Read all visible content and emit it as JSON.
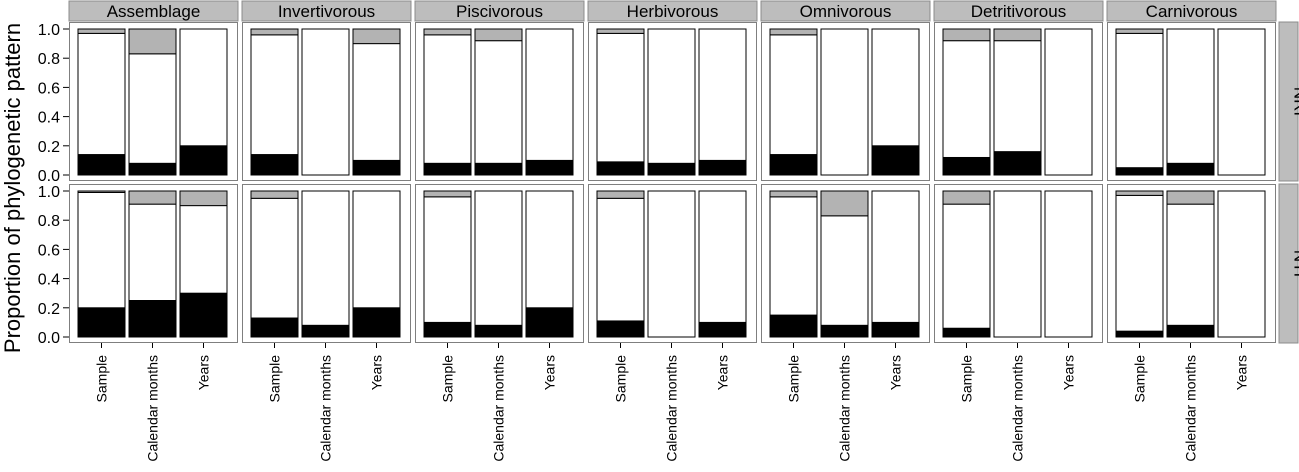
{
  "chart_data": {
    "type": "bar",
    "stacked": true,
    "ylabel": "Proportion of phylogenetic pattern",
    "xlabel": "",
    "ylim": [
      0,
      1
    ],
    "yticks": [
      "0.0",
      "0.2",
      "0.4",
      "0.6",
      "0.8",
      "1.0"
    ],
    "categories": [
      "Sample",
      "Calendar months",
      "Years"
    ],
    "columns": [
      "Assemblage",
      "Invertivorous",
      "Piscivorous",
      "Herbivorous",
      "Omnivorous",
      "Detritivorous",
      "Carnivorous"
    ],
    "rows": [
      "NRI",
      "NTI"
    ],
    "colors": {
      "black_segment": "#000000",
      "white_segment": "#ffffff",
      "gray_segment": "#b3b3b3",
      "strip_fill": "#bdbdbd",
      "panel_border": "#7f7f7f"
    },
    "panels": {
      "NRI": [
        {
          "black": [
            0.14,
            0.08,
            0.2
          ],
          "white": [
            0.83,
            0.75,
            0.8
          ],
          "gray": [
            0.03,
            0.17,
            0.0
          ]
        },
        {
          "black": [
            0.14,
            0.0,
            0.1
          ],
          "white": [
            0.82,
            1.0,
            0.8
          ],
          "gray": [
            0.04,
            0.0,
            0.1
          ]
        },
        {
          "black": [
            0.08,
            0.08,
            0.1
          ],
          "white": [
            0.88,
            0.84,
            0.9
          ],
          "gray": [
            0.04,
            0.08,
            0.0
          ]
        },
        {
          "black": [
            0.09,
            0.08,
            0.1
          ],
          "white": [
            0.88,
            0.92,
            0.9
          ],
          "gray": [
            0.03,
            0.0,
            0.0
          ]
        },
        {
          "black": [
            0.14,
            0.0,
            0.2
          ],
          "white": [
            0.82,
            1.0,
            0.8
          ],
          "gray": [
            0.04,
            0.0,
            0.0
          ]
        },
        {
          "black": [
            0.12,
            0.16,
            0.0
          ],
          "white": [
            0.8,
            0.76,
            1.0
          ],
          "gray": [
            0.08,
            0.08,
            0.0
          ]
        },
        {
          "black": [
            0.05,
            0.08,
            0.0
          ],
          "white": [
            0.92,
            0.92,
            1.0
          ],
          "gray": [
            0.03,
            0.0,
            0.0
          ]
        }
      ],
      "NTI": [
        {
          "black": [
            0.2,
            0.25,
            0.3
          ],
          "white": [
            0.79,
            0.66,
            0.6
          ],
          "gray": [
            0.01,
            0.09,
            0.1
          ]
        },
        {
          "black": [
            0.13,
            0.08,
            0.2
          ],
          "white": [
            0.82,
            0.92,
            0.8
          ],
          "gray": [
            0.05,
            0.0,
            0.0
          ]
        },
        {
          "black": [
            0.1,
            0.08,
            0.2
          ],
          "white": [
            0.86,
            0.92,
            0.8
          ],
          "gray": [
            0.04,
            0.0,
            0.0
          ]
        },
        {
          "black": [
            0.11,
            0.0,
            0.1
          ],
          "white": [
            0.84,
            1.0,
            0.9
          ],
          "gray": [
            0.05,
            0.0,
            0.0
          ]
        },
        {
          "black": [
            0.15,
            0.08,
            0.1
          ],
          "white": [
            0.81,
            0.75,
            0.9
          ],
          "gray": [
            0.04,
            0.17,
            0.0
          ]
        },
        {
          "black": [
            0.06,
            0.0,
            0.0
          ],
          "white": [
            0.85,
            1.0,
            1.0
          ],
          "gray": [
            0.09,
            0.0,
            0.0
          ]
        },
        {
          "black": [
            0.04,
            0.08,
            0.0
          ],
          "white": [
            0.93,
            0.83,
            1.0
          ],
          "gray": [
            0.03,
            0.09,
            0.0
          ]
        }
      ]
    }
  }
}
